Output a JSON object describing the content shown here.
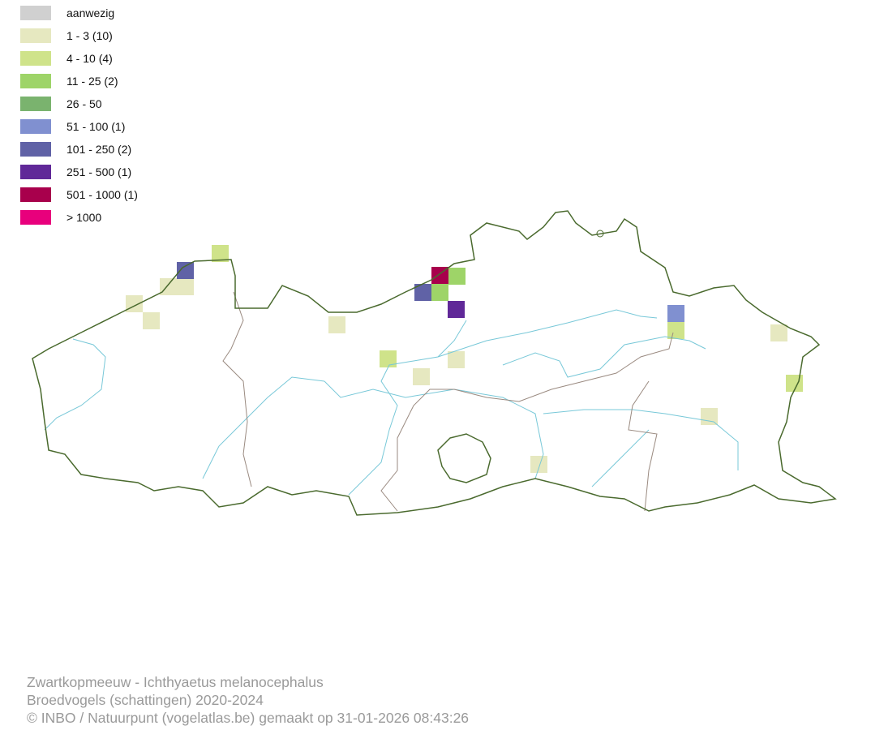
{
  "legend": [
    {
      "label": "aanwezig",
      "color": "#d0d0d0"
    },
    {
      "label": "1 - 3 (10)",
      "color": "#e6e8c0"
    },
    {
      "label": "4 - 10 (4)",
      "color": "#cfe38a"
    },
    {
      "label": "11 - 25 (2)",
      "color": "#9ed468"
    },
    {
      "label": "26 - 50",
      "color": "#7ab36e"
    },
    {
      "label": "51 - 100 (1)",
      "color": "#8090d0"
    },
    {
      "label": "101 - 250 (2)",
      "color": "#6062a6"
    },
    {
      "label": "251 - 500 (1)",
      "color": "#602898"
    },
    {
      "label": "501 - 1000 (1)",
      "color": "#a8004c"
    },
    {
      "label": "> 1000",
      "color": "#e8007c"
    }
  ],
  "map": {
    "boundary_color": "#4a6a2e",
    "inner_boundary_color": "#9a8a80",
    "river_color": "#78c8d8"
  },
  "footer": {
    "line1": "Zwartkopmeeuw - Ichthyaetus melanocephalus",
    "line2": "Broedvogels (schattingen) 2020-2024",
    "line3": "© INBO / Natuurpunt (vogelatlas.be) gemaakt op 31-01-2026 08:43:26"
  }
}
